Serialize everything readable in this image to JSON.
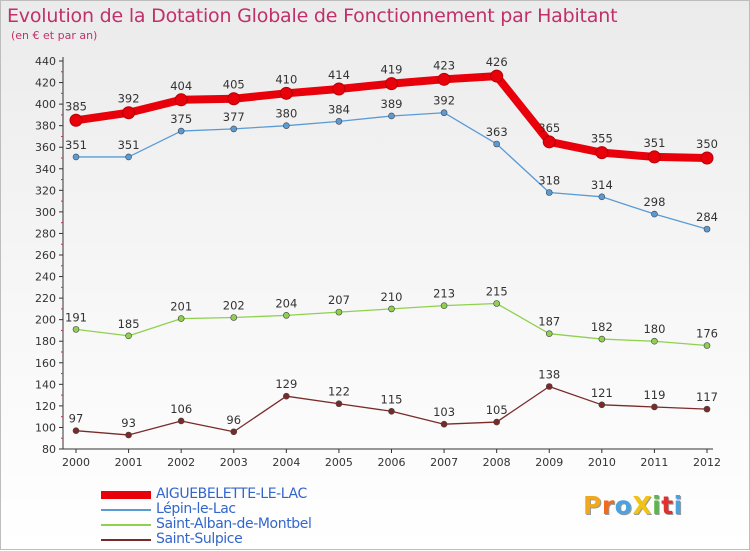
{
  "title": "Evolution de la Dotation Globale de Fonctionnement par Habitant",
  "subtitle": "(en € et par an)",
  "logo": {
    "text": "ProXiti",
    "colors": [
      "#f2a81d",
      "#ef6c1e",
      "#4aa3df",
      "#f2c314",
      "#5ab84a",
      "#e0312f",
      "#4aa3df"
    ]
  },
  "chart_data": {
    "type": "line",
    "x": [
      2000,
      2001,
      2002,
      2003,
      2004,
      2005,
      2006,
      2007,
      2008,
      2009,
      2010,
      2011,
      2012
    ],
    "ylim": [
      80,
      440
    ],
    "yticks": [
      80,
      100,
      120,
      140,
      160,
      180,
      200,
      220,
      240,
      260,
      280,
      300,
      320,
      340,
      360,
      380,
      400,
      420,
      440
    ],
    "grid": false,
    "legend_position": "bottom-left",
    "series": [
      {
        "name": "AIGUEBELETTE-LE-LAC",
        "color": "#e8000b",
        "bold": true,
        "values": [
          385,
          392,
          404,
          405,
          410,
          414,
          419,
          423,
          426,
          365,
          355,
          351,
          350
        ]
      },
      {
        "name": "Lépin-le-Lac",
        "color": "#5b9bd5",
        "bold": false,
        "values": [
          351,
          351,
          375,
          377,
          380,
          384,
          389,
          392,
          363,
          318,
          314,
          298,
          284
        ]
      },
      {
        "name": "Saint-Alban-de-Montbel",
        "color": "#8fd14f",
        "bold": false,
        "values": [
          191,
          185,
          201,
          202,
          204,
          207,
          210,
          213,
          215,
          187,
          182,
          180,
          176
        ]
      },
      {
        "name": "Saint-Sulpice",
        "color": "#7b2a2a",
        "bold": false,
        "values": [
          97,
          93,
          106,
          96,
          129,
          122,
          115,
          103,
          105,
          138,
          121,
          119,
          117
        ]
      }
    ]
  }
}
